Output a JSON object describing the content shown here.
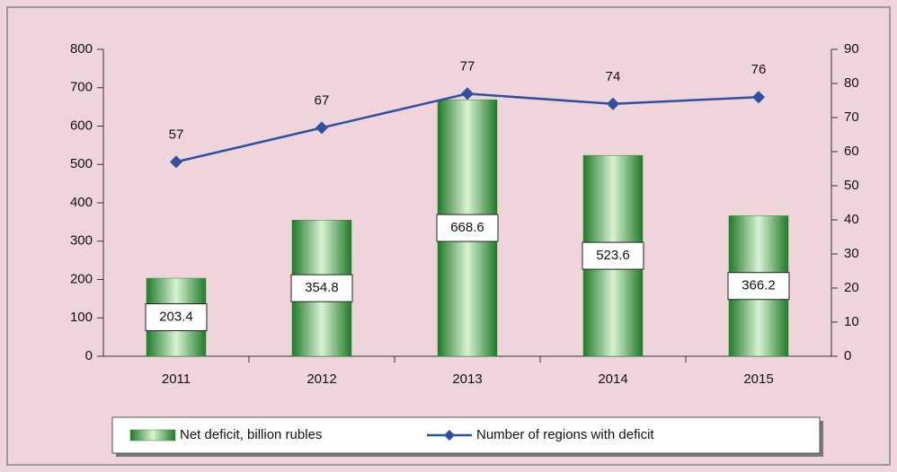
{
  "chart_data": {
    "type": "bar",
    "categories": [
      "2011",
      "2012",
      "2013",
      "2014",
      "2015"
    ],
    "series": [
      {
        "name": "Net deficit, billion rubles",
        "type": "bar",
        "color": "#2e8b2e",
        "values": [
          203.4,
          354.8,
          668.6,
          523.6,
          366.2
        ]
      },
      {
        "name": "Number of regions with deficit",
        "type": "line",
        "color": "#2f4fa0",
        "axis": "y2",
        "values": [
          57,
          67,
          77,
          74,
          76
        ]
      }
    ],
    "ylim": [
      0,
      800
    ],
    "yticks": [
      0,
      100,
      200,
      300,
      400,
      500,
      600,
      700,
      800
    ],
    "y2lim": [
      0,
      90
    ],
    "y2ticks": [
      0,
      10,
      20,
      30,
      40,
      50,
      60,
      70,
      80,
      90
    ],
    "legend": "bottom"
  }
}
